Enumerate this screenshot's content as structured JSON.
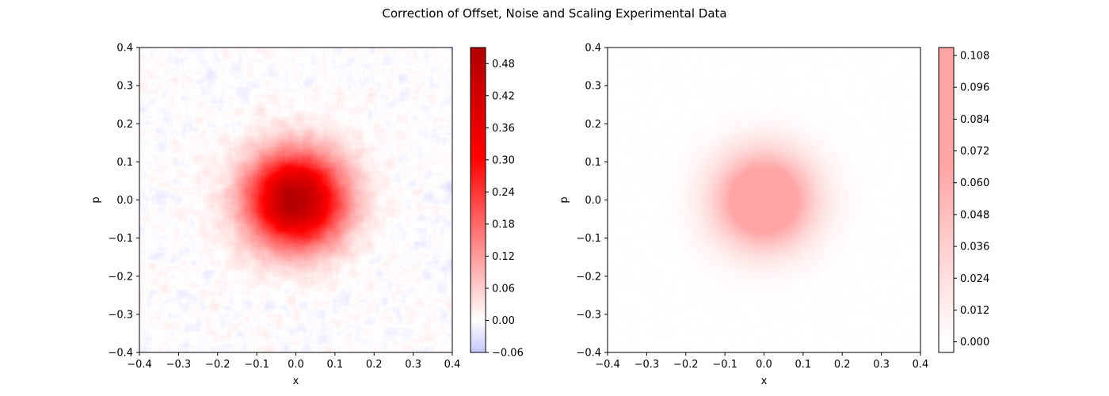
{
  "figure": {
    "title": "Correction of Offset, Noise and Scaling Experimental Data"
  },
  "chart_data": [
    {
      "type": "heatmap",
      "xlabel": "x",
      "ylabel": "p",
      "xlim": [
        -0.4,
        0.4
      ],
      "ylim": [
        -0.4,
        0.4
      ],
      "xticks": [
        "−0.4",
        "−0.3",
        "−0.2",
        "−0.1",
        "0.0",
        "0.1",
        "0.2",
        "0.3",
        "0.4"
      ],
      "yticks": [
        "−0.4",
        "−0.3",
        "−0.2",
        "−0.1",
        "0.0",
        "0.1",
        "0.2",
        "0.3",
        "0.4"
      ],
      "peak": {
        "x": 0.0,
        "p": 0.0,
        "value": 0.5,
        "sigma": 0.085
      },
      "noise_amplitude": 0.03,
      "colorbar": {
        "range": [
          -0.06,
          0.51
        ],
        "ticks": [
          -0.06,
          0.0,
          0.06,
          0.12,
          0.18,
          0.24,
          0.3,
          0.36,
          0.42,
          0.48
        ],
        "tick_labels": [
          "−0.06",
          "0.00",
          "0.06",
          "0.12",
          "0.18",
          "0.24",
          "0.30",
          "0.36",
          "0.42",
          "0.48"
        ]
      },
      "colors": {
        "negative": "#c8c8ff",
        "zero": "#ffffff",
        "mid": "#ff0000",
        "max": "#b00000"
      }
    },
    {
      "type": "heatmap",
      "xlabel": "x",
      "ylabel": "p",
      "xlim": [
        -0.4,
        0.4
      ],
      "ylim": [
        -0.4,
        0.4
      ],
      "xticks": [
        "−0.4",
        "−0.3",
        "−0.2",
        "−0.1",
        "0.0",
        "0.1",
        "0.2",
        "0.3",
        "0.4"
      ],
      "yticks": [
        "−0.4",
        "−0.3",
        "−0.2",
        "−0.1",
        "0.0",
        "0.1",
        "0.2",
        "0.3",
        "0.4"
      ],
      "peak": {
        "x": 0.0,
        "p": 0.0,
        "value": 0.11,
        "sigma": 0.085
      },
      "noise_amplitude": 0.002,
      "colorbar": {
        "range": [
          -0.004,
          0.111
        ],
        "ticks": [
          0.0,
          0.012,
          0.024,
          0.036,
          0.048,
          0.06,
          0.072,
          0.084,
          0.096,
          0.108
        ],
        "tick_labels": [
          "0.000",
          "0.012",
          "0.024",
          "0.036",
          "0.048",
          "0.060",
          "0.072",
          "0.084",
          "0.096",
          "0.108"
        ]
      },
      "colors": {
        "negative": "#fcfcff",
        "zero": "#ffffff",
        "mid": "#ffa5a5",
        "max": "#ffa5a5"
      }
    }
  ]
}
